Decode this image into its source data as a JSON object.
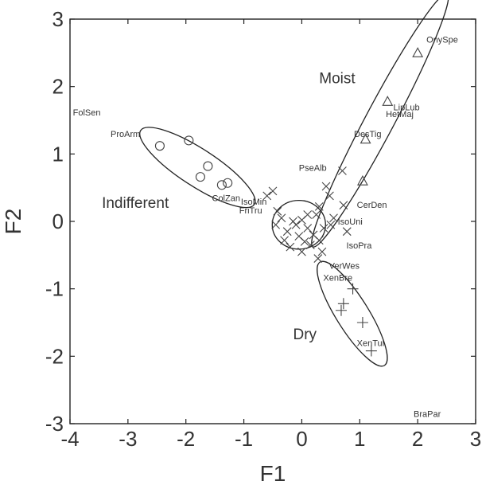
{
  "chart_data": {
    "type": "scatter",
    "xlabel": "F1",
    "ylabel": "F2",
    "xlim": [
      -4,
      3
    ],
    "ylim": [
      -3,
      3
    ],
    "xticks": [
      "-4",
      "-3",
      "-2",
      "-1",
      "0",
      "1",
      "2",
      "3"
    ],
    "yticks": [
      "-3",
      "-2",
      "-1",
      "0",
      "1",
      "2",
      "3"
    ],
    "grid": false,
    "groups": [
      {
        "label": "Moist",
        "marker": "triangle",
        "label_x": 0.3,
        "label_y": 2.05,
        "ellipse": {
          "cx": 1.35,
          "cy": 1.5,
          "rx": 2.47,
          "ry": 0.25,
          "angle_deg": 62
        }
      },
      {
        "label": "Indifferent",
        "marker": "circle",
        "label_x": -3.45,
        "label_y": 0.2,
        "ellipse": {
          "cx": -1.8,
          "cy": 0.8,
          "rx": 1.17,
          "ry": 0.32,
          "angle_deg": -33
        }
      },
      {
        "label": "Dry",
        "marker": "plus",
        "label_x": -0.15,
        "label_y": -1.75,
        "ellipse": {
          "cx": 0.87,
          "cy": -1.37,
          "rx": 1.05,
          "ry": 0.28,
          "angle_deg": -58
        }
      },
      {
        "label": "",
        "marker": "x",
        "ellipse": {
          "cx": -0.05,
          "cy": -0.05,
          "rx": 0.46,
          "ry": 0.42,
          "angle_deg": 0
        }
      }
    ],
    "points": [
      {
        "marker": "triangle",
        "x": 2.0,
        "y": 2.5
      },
      {
        "marker": "triangle",
        "x": 1.48,
        "y": 1.78
      },
      {
        "marker": "triangle",
        "x": 1.1,
        "y": 1.22
      },
      {
        "marker": "triangle",
        "x": 1.05,
        "y": 0.6
      },
      {
        "marker": "circle",
        "x": -2.45,
        "y": 1.12
      },
      {
        "marker": "circle",
        "x": -1.95,
        "y": 1.2
      },
      {
        "marker": "circle",
        "x": -1.62,
        "y": 0.82
      },
      {
        "marker": "circle",
        "x": -1.75,
        "y": 0.66
      },
      {
        "marker": "circle",
        "x": -1.28,
        "y": 0.57
      },
      {
        "marker": "circle",
        "x": -1.38,
        "y": 0.54
      },
      {
        "marker": "plus",
        "x": 0.88,
        "y": -1.0
      },
      {
        "marker": "plus",
        "x": 0.72,
        "y": -1.22
      },
      {
        "marker": "plus",
        "x": 0.68,
        "y": -1.32
      },
      {
        "marker": "plus",
        "x": 1.05,
        "y": -1.5
      },
      {
        "marker": "plus",
        "x": 1.2,
        "y": -1.92
      },
      {
        "marker": "x",
        "x": 0.7,
        "y": 0.75
      },
      {
        "marker": "x",
        "x": 0.42,
        "y": 0.52
      },
      {
        "marker": "x",
        "x": 0.48,
        "y": 0.38
      },
      {
        "marker": "x",
        "x": 0.72,
        "y": 0.24
      },
      {
        "marker": "x",
        "x": 0.3,
        "y": 0.22
      },
      {
        "marker": "x",
        "x": 0.55,
        "y": 0.05
      },
      {
        "marker": "x",
        "x": 0.5,
        "y": -0.05
      },
      {
        "marker": "x",
        "x": 0.78,
        "y": -0.15
      },
      {
        "marker": "x",
        "x": -0.5,
        "y": 0.45
      },
      {
        "marker": "x",
        "x": -0.6,
        "y": 0.38
      },
      {
        "marker": "x",
        "x": -0.42,
        "y": 0.15
      },
      {
        "marker": "x",
        "x": -0.35,
        "y": 0.05
      },
      {
        "marker": "x",
        "x": -0.45,
        "y": -0.05
      },
      {
        "marker": "x",
        "x": -0.25,
        "y": -0.15
      },
      {
        "marker": "x",
        "x": -0.1,
        "y": -0.05
      },
      {
        "marker": "x",
        "x": 0.0,
        "y": 0.02
      },
      {
        "marker": "x",
        "x": 0.1,
        "y": -0.1
      },
      {
        "marker": "x",
        "x": -0.15,
        "y": 0.0
      },
      {
        "marker": "x",
        "x": 0.2,
        "y": -0.2
      },
      {
        "marker": "x",
        "x": 0.05,
        "y": -0.3
      },
      {
        "marker": "x",
        "x": -0.05,
        "y": -0.22
      },
      {
        "marker": "x",
        "x": 0.15,
        "y": -0.35
      },
      {
        "marker": "x",
        "x": 0.3,
        "y": -0.28
      },
      {
        "marker": "x",
        "x": -0.2,
        "y": -0.38
      },
      {
        "marker": "x",
        "x": 0.0,
        "y": -0.45
      },
      {
        "marker": "x",
        "x": 0.25,
        "y": 0.1
      },
      {
        "marker": "x",
        "x": -0.3,
        "y": -0.28
      },
      {
        "marker": "x",
        "x": 0.1,
        "y": 0.1
      },
      {
        "marker": "x",
        "x": 0.35,
        "y": -0.45
      },
      {
        "marker": "x",
        "x": 0.28,
        "y": -0.55
      },
      {
        "marker": "x",
        "x": 0.38,
        "y": -0.1
      }
    ],
    "point_labels": [
      {
        "text": "OnySpe",
        "x": 2.15,
        "y": 2.65
      },
      {
        "text": "LipLub",
        "x": 1.58,
        "y": 1.65
      },
      {
        "text": "HetMaj",
        "x": 1.45,
        "y": 1.55
      },
      {
        "text": "DesTig",
        "x": 0.9,
        "y": 1.25
      },
      {
        "text": "FolSen",
        "x": -3.95,
        "y": 1.57
      },
      {
        "text": "ProArm",
        "x": -3.3,
        "y": 1.25
      },
      {
        "text": "PseAlb",
        "x": -0.05,
        "y": 0.75
      },
      {
        "text": "CerDen",
        "x": 0.95,
        "y": 0.2
      },
      {
        "text": "IsoUni",
        "x": 0.62,
        "y": -0.05
      },
      {
        "text": "IsoPra",
        "x": 0.77,
        "y": -0.4
      },
      {
        "text": "ColZan",
        "x": -1.55,
        "y": 0.3
      },
      {
        "text": "IsoMin",
        "x": -1.05,
        "y": 0.25
      },
      {
        "text": "FriTru",
        "x": -1.08,
        "y": 0.12
      },
      {
        "text": "VerWes",
        "x": 0.47,
        "y": -0.7
      },
      {
        "text": "XenBre",
        "x": 0.37,
        "y": -0.88
      },
      {
        "text": "XenTul",
        "x": 0.95,
        "y": -1.85
      },
      {
        "text": "BraPar",
        "x": 1.93,
        "y": -2.9
      }
    ]
  }
}
